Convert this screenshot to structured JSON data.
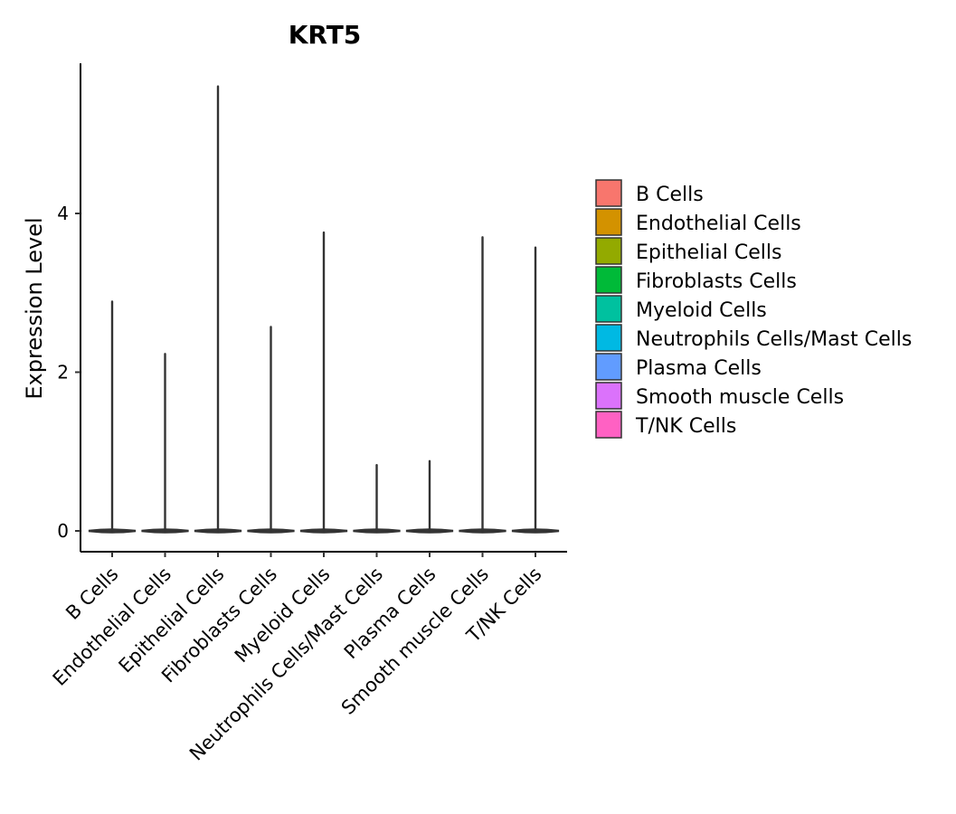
{
  "chart_data": {
    "type": "violin",
    "title": "KRT5",
    "xlabel": "",
    "ylabel": "Expression Level",
    "ylim": [
      -0.3,
      5.9
    ],
    "yticks": [
      0,
      2,
      4
    ],
    "grid": false,
    "legend_position": "right",
    "categories": [
      "B Cells",
      "Endothelial Cells",
      "Epithelial Cells",
      "Fibroblasts Cells",
      "Myeloid Cells",
      "Neutrophils Cells/Mast Cells",
      "Plasma Cells",
      "Smooth muscle Cells",
      "T/NK Cells"
    ],
    "max_values": [
      2.89,
      2.23,
      5.6,
      2.57,
      3.76,
      0.83,
      0.88,
      3.7,
      3.57
    ],
    "colors": [
      "#F8766D",
      "#D39200",
      "#93AA00",
      "#00BA38",
      "#00C19F",
      "#00B9E3",
      "#619CFF",
      "#DB72FB",
      "#FF61C3"
    ],
    "legend": [
      "B Cells",
      "Endothelial Cells",
      "Epithelial Cells",
      "Fibroblasts Cells",
      "Myeloid Cells",
      "Neutrophils Cells/Mast Cells",
      "Plasma Cells",
      "Smooth muscle Cells",
      "T/NK Cells"
    ]
  }
}
